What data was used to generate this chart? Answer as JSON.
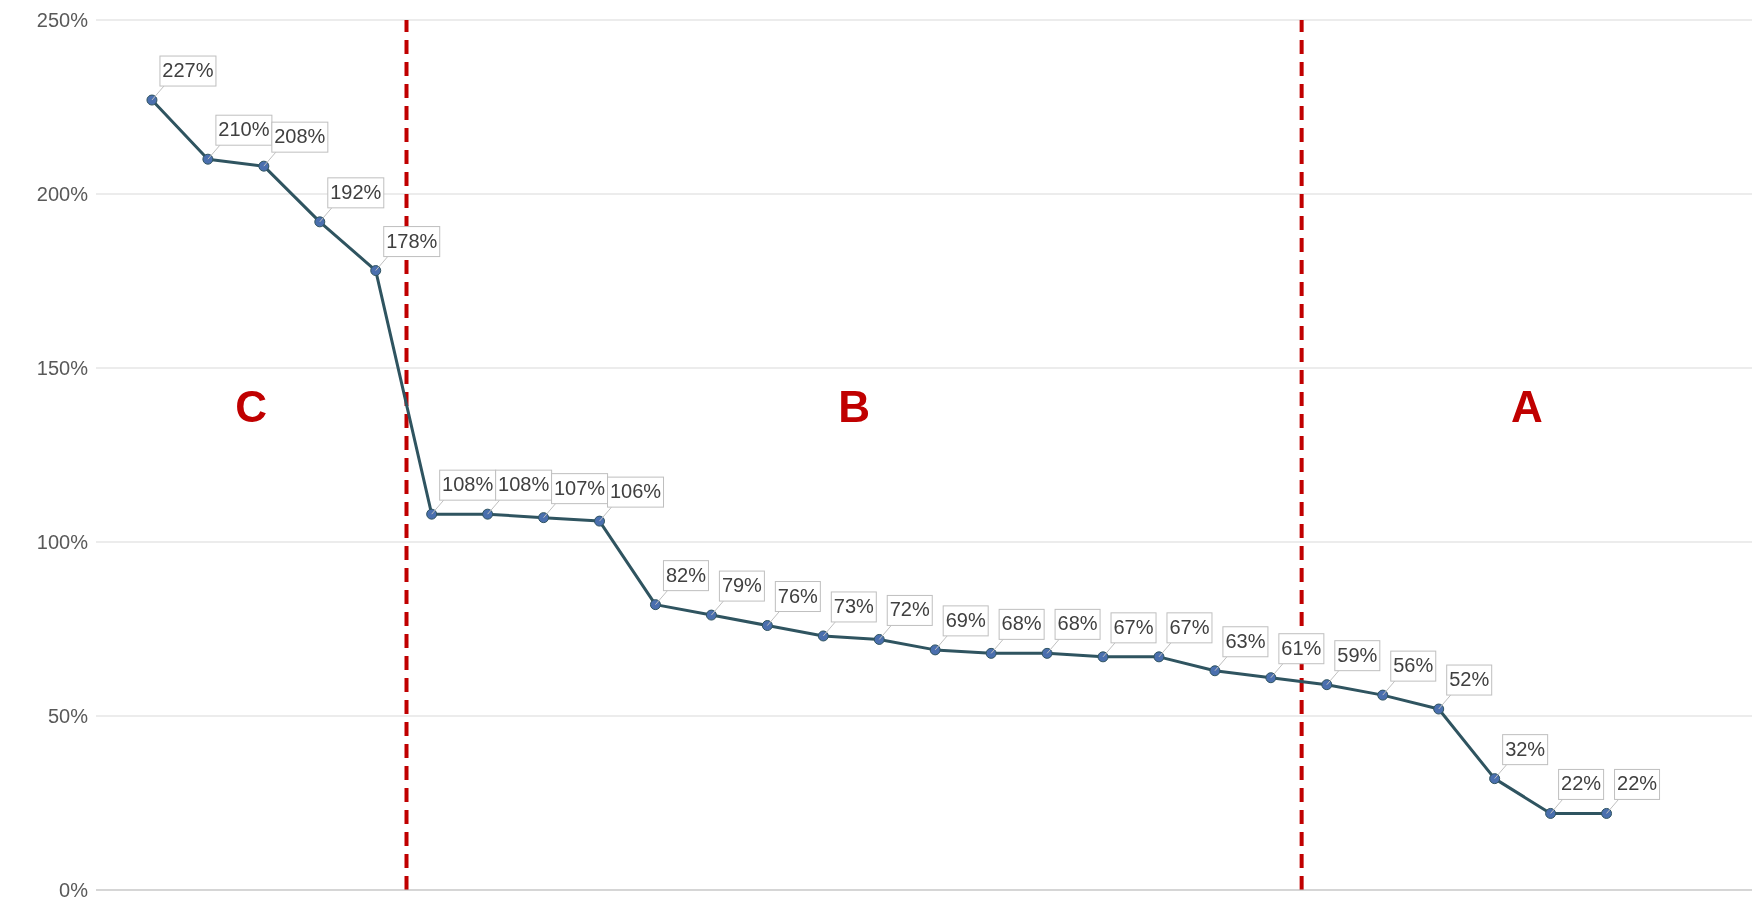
{
  "chart_data": {
    "type": "line",
    "categories": [
      null,
      null,
      null,
      null,
      null,
      null,
      null,
      null,
      null,
      null,
      null,
      null,
      null,
      null,
      null,
      null,
      null,
      null,
      null,
      null,
      null,
      null,
      null,
      null,
      null,
      null,
      null
    ],
    "series": [
      {
        "color": "#2f5460",
        "values": [
          227,
          210,
          208,
          192,
          178,
          108,
          108,
          107,
          106,
          82,
          79,
          76,
          73,
          72,
          69,
          68,
          68,
          67,
          67,
          63,
          61,
          59,
          56,
          52,
          32,
          22,
          22
        ],
        "value_labels": [
          "227%",
          "210%",
          "208%",
          "192%",
          "178%",
          "108%",
          "108%",
          "107%",
          "106%",
          "82%",
          "79%",
          "76%",
          "73%",
          "72%",
          "69%",
          "68%",
          "68%",
          "67%",
          "67%",
          "63%",
          "61%",
          "59%",
          "56%",
          "52%",
          "32%",
          "22%",
          "22%"
        ]
      }
    ],
    "ylim": [
      0,
      250
    ],
    "yticks": [
      {
        "value": 0,
        "label": "0%"
      },
      {
        "value": 50,
        "label": "50%"
      },
      {
        "value": 100,
        "label": "100%"
      },
      {
        "value": 150,
        "label": "150%"
      },
      {
        "value": 200,
        "label": "200%"
      },
      {
        "value": 250,
        "label": "250%"
      }
    ],
    "tick_labels": "y",
    "grid": true,
    "marker": "circle",
    "line_style": "solid",
    "ref_lines": [
      {
        "axis": "x",
        "color": "#c00000",
        "line_style": "dashed"
      },
      {
        "axis": "x",
        "color": "#c00000",
        "line_style": "dashed"
      }
    ],
    "annotations": [
      "C",
      "B",
      "A"
    ]
  }
}
